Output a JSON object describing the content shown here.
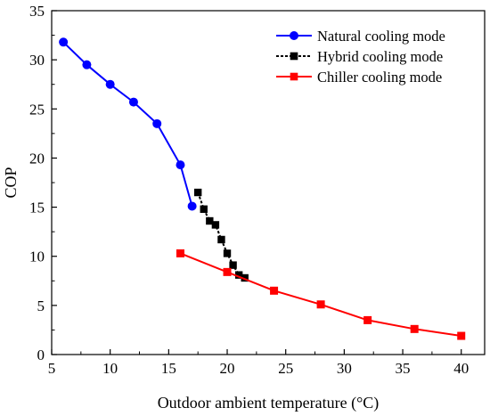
{
  "chart_data": {
    "type": "line",
    "xlabel": "Outdoor ambient temperature (°C)",
    "ylabel": "COP",
    "xlim": [
      5,
      42
    ],
    "ylim": [
      0,
      35
    ],
    "xticks": [
      5,
      10,
      15,
      20,
      25,
      30,
      35,
      40
    ],
    "yticks": [
      0,
      5,
      10,
      15,
      20,
      25,
      30,
      35
    ],
    "legend_position": "top-right",
    "series": [
      {
        "name": "Natural cooling mode",
        "color": "#0000ff",
        "marker": "circle",
        "linestyle": "solid",
        "x": [
          6,
          8,
          10,
          12,
          14,
          16,
          17
        ],
        "y": [
          31.8,
          29.5,
          27.5,
          25.7,
          23.5,
          19.3,
          15.1
        ]
      },
      {
        "name": "Hybrid cooling mode",
        "color": "#000000",
        "marker": "square",
        "linestyle": "dashed",
        "x": [
          17.5,
          18,
          18.5,
          19,
          19.5,
          20,
          20.5,
          21,
          21.5
        ],
        "y": [
          16.5,
          14.8,
          13.6,
          13.2,
          11.7,
          10.3,
          9.1,
          8.1,
          7.8
        ]
      },
      {
        "name": "Chiller cooling mode",
        "color": "#ff0000",
        "marker": "square",
        "linestyle": "solid",
        "x": [
          16,
          20,
          24,
          28,
          32,
          36,
          40
        ],
        "y": [
          10.3,
          8.4,
          6.5,
          5.1,
          3.5,
          2.6,
          1.9
        ]
      }
    ]
  }
}
